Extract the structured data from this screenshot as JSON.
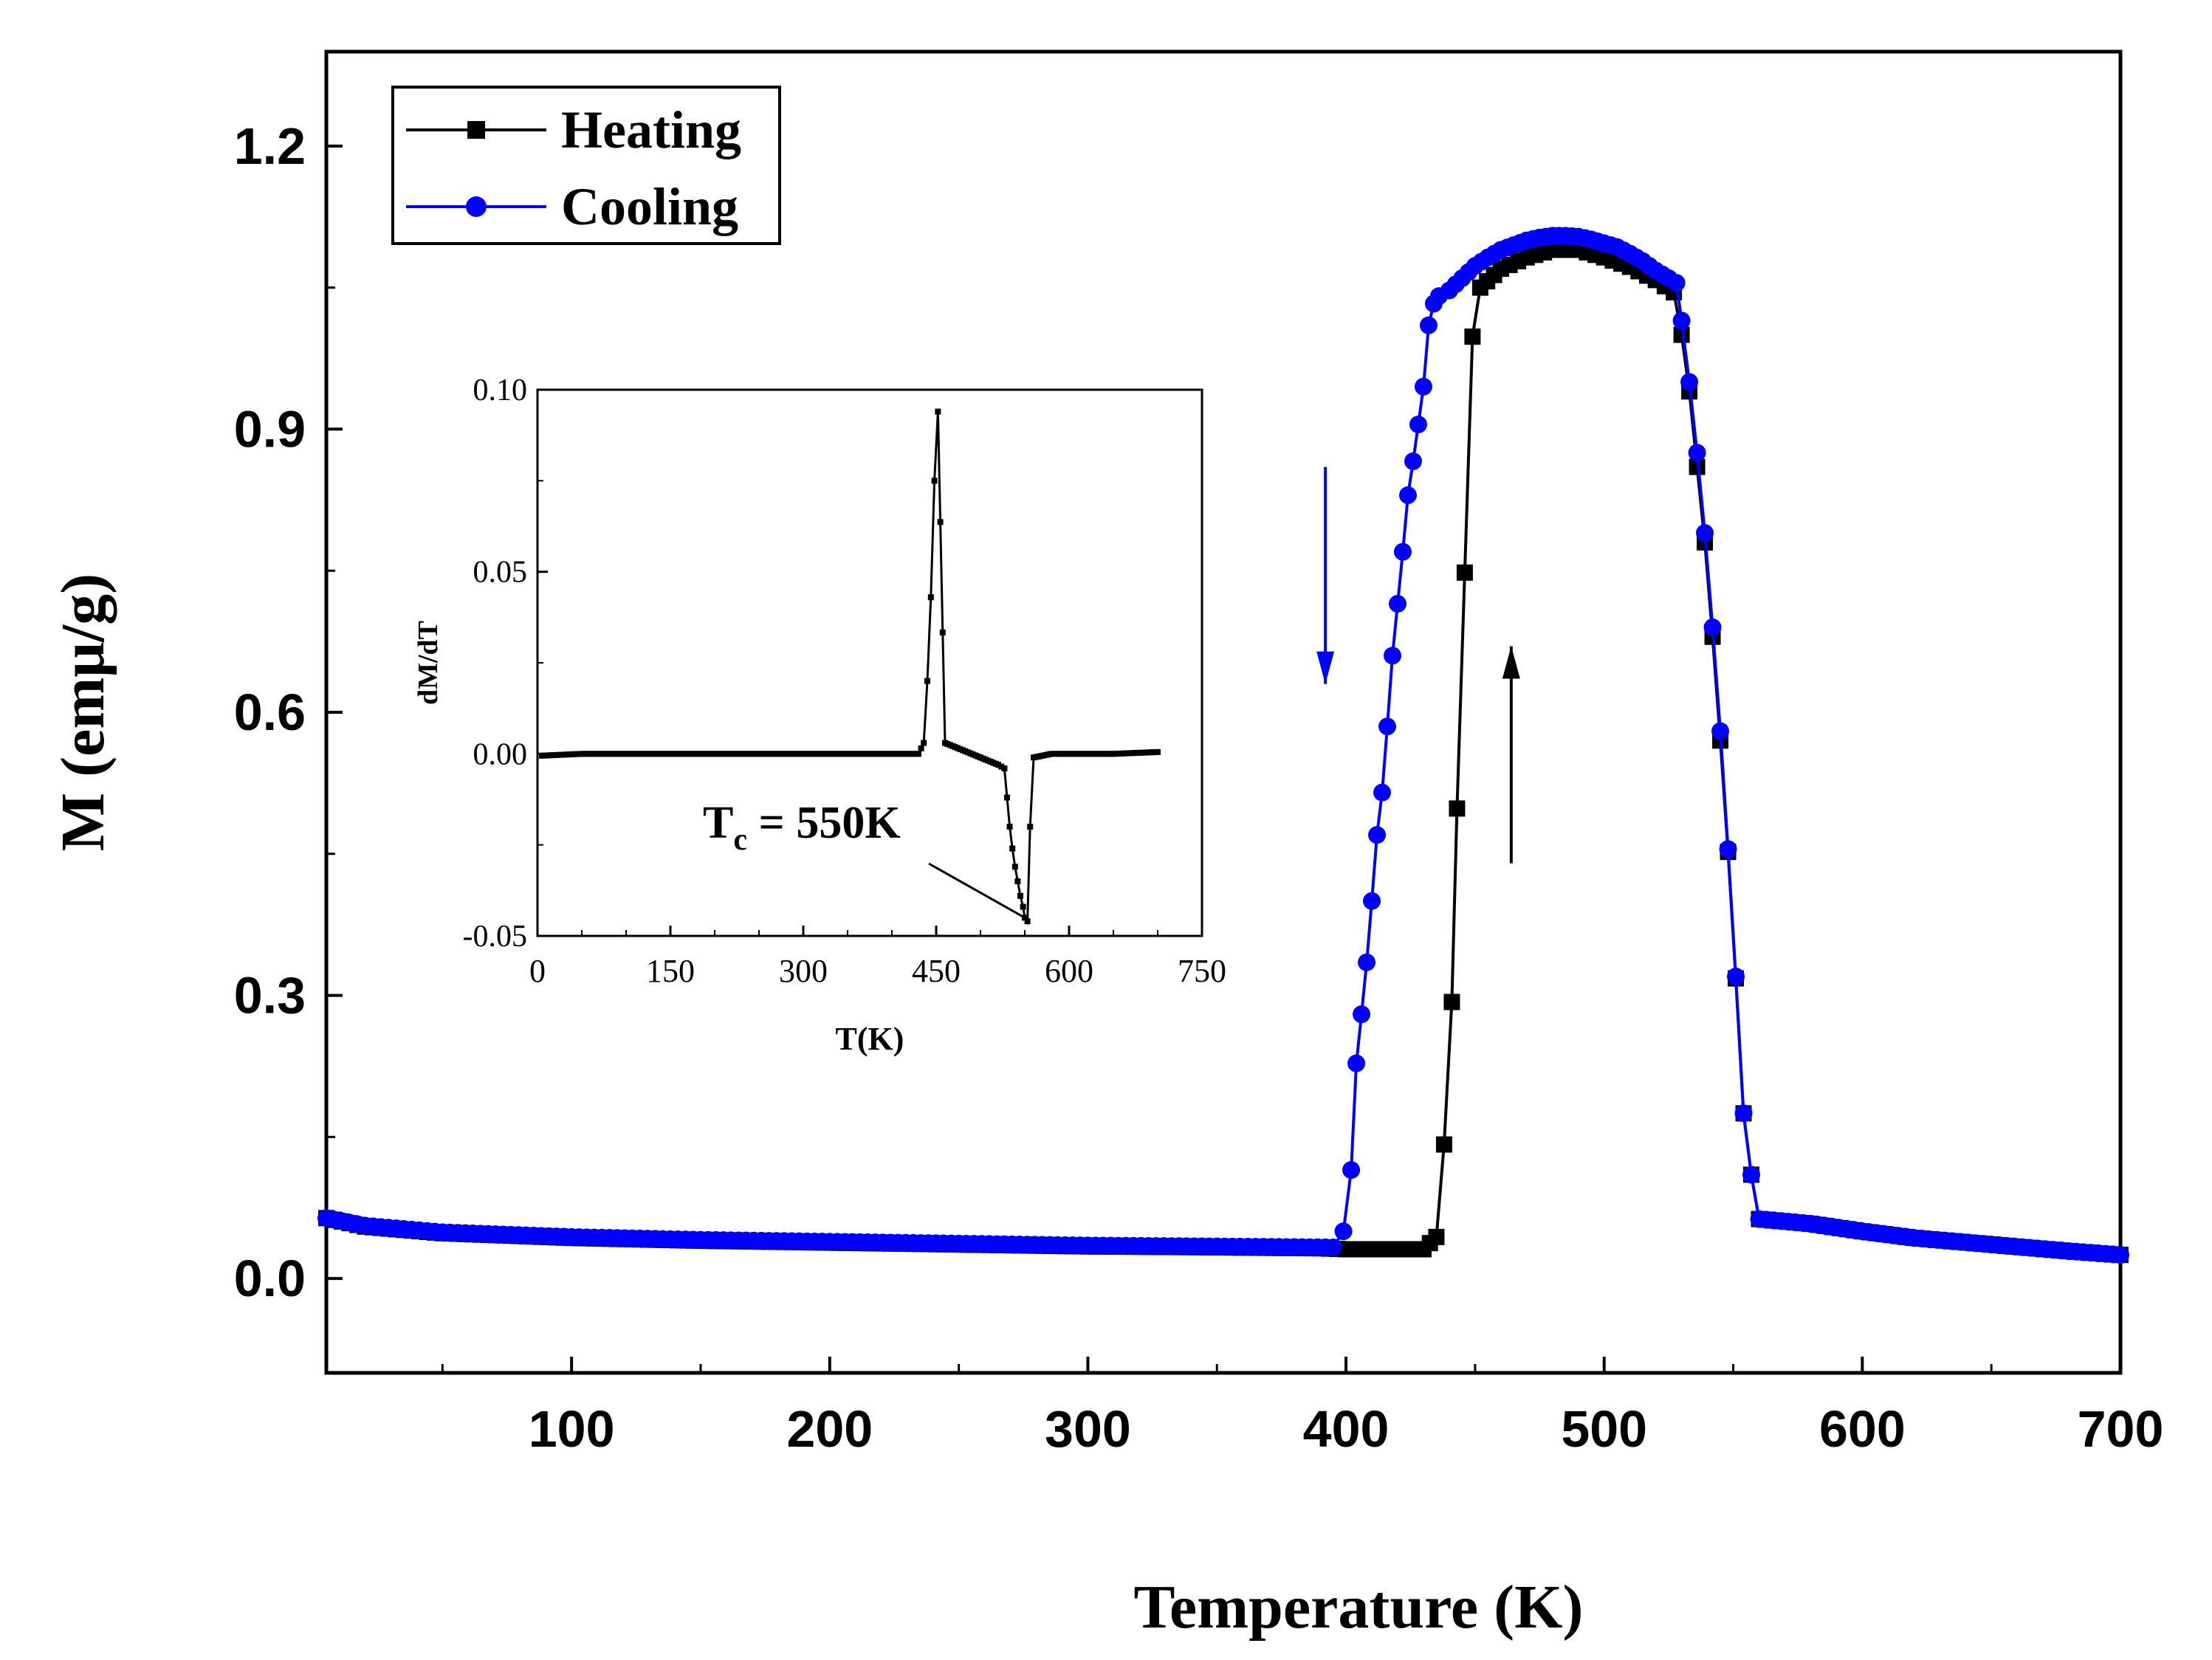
{
  "chart_data": {
    "type": "line",
    "ylabel": "M (emμ/g)",
    "xlabel": "Temperature (K)",
    "xlim": [
      5,
      700
    ],
    "ylim": [
      -0.1,
      1.3
    ],
    "x_ticks": [
      100,
      200,
      300,
      400,
      500,
      600,
      700
    ],
    "x_tick_labels": [
      "100",
      "200",
      "300",
      "400",
      "500",
      "600",
      "700"
    ],
    "y_ticks": [
      0.0,
      0.3,
      0.6,
      0.9,
      1.2
    ],
    "y_tick_labels": [
      "0.0",
      "0.3",
      "0.6",
      "0.9",
      "1.2"
    ],
    "legend_position": "top-left",
    "series": [
      {
        "name": "Heating",
        "color": "#000000",
        "marker": "square",
        "x": [
          5,
          20,
          50,
          100,
          150,
          200,
          250,
          300,
          350,
          390,
          400,
          410,
          420,
          430,
          435,
          438,
          441,
          443,
          446,
          449,
          452,
          460,
          470,
          480,
          490,
          500,
          510,
          520,
          527,
          530,
          533,
          536,
          539,
          542,
          545,
          548,
          551,
          554,
          557,
          560,
          580,
          600,
          620,
          650,
          680,
          700
        ],
        "y": [
          0.064,
          0.055,
          0.048,
          0.043,
          0.04,
          0.038,
          0.036,
          0.034,
          0.033,
          0.032,
          0.031,
          0.031,
          0.031,
          0.031,
          0.044,
          0.142,
          0.293,
          0.498,
          0.748,
          0.998,
          1.05,
          1.07,
          1.082,
          1.09,
          1.09,
          1.082,
          1.072,
          1.058,
          1.045,
          1.0,
          0.94,
          0.86,
          0.78,
          0.68,
          0.57,
          0.452,
          0.318,
          0.175,
          0.11,
          0.063,
          0.058,
          0.05,
          0.043,
          0.036,
          0.029,
          0.025
        ]
      },
      {
        "name": "Cooling",
        "color": "#0000ff",
        "marker": "circle",
        "x": [
          5,
          20,
          50,
          100,
          150,
          200,
          250,
          300,
          350,
          395,
          399,
          402,
          404,
          406,
          408,
          410,
          412,
          414,
          416,
          418,
          420,
          422,
          424,
          426,
          428,
          430,
          432,
          434,
          436,
          440,
          445,
          450,
          455,
          460,
          465,
          470,
          475,
          480,
          485,
          490,
          495,
          500,
          505,
          510,
          515,
          520,
          525,
          528,
          530,
          533,
          536,
          539,
          542,
          545,
          548,
          551,
          554,
          557,
          560,
          580,
          600,
          620,
          650,
          680,
          700
        ],
        "y": [
          0.064,
          0.056,
          0.049,
          0.044,
          0.041,
          0.039,
          0.037,
          0.035,
          0.034,
          0.033,
          0.05,
          0.115,
          0.228,
          0.28,
          0.335,
          0.4,
          0.47,
          0.515,
          0.585,
          0.66,
          0.715,
          0.77,
          0.83,
          0.866,
          0.905,
          0.945,
          1.01,
          1.033,
          1.041,
          1.047,
          1.06,
          1.073,
          1.082,
          1.09,
          1.095,
          1.1,
          1.103,
          1.105,
          1.105,
          1.104,
          1.101,
          1.097,
          1.093,
          1.086,
          1.078,
          1.068,
          1.06,
          1.055,
          1.015,
          0.95,
          0.875,
          0.79,
          0.69,
          0.58,
          0.455,
          0.32,
          0.175,
          0.11,
          0.063,
          0.058,
          0.05,
          0.043,
          0.036,
          0.029,
          0.025
        ]
      }
    ],
    "annotations": {
      "cooling_arrow": {
        "x": 392,
        "y_from": 0.86,
        "y_to": 0.63,
        "color": "#0000ff",
        "direction": "down"
      },
      "heating_arrow": {
        "x": 464,
        "y_from": 0.44,
        "y_to": 0.67,
        "color": "#000000",
        "direction": "up"
      }
    },
    "inset": {
      "type": "line",
      "xlabel": "T(K)",
      "ylabel": "dM/dT",
      "xlim": [
        0,
        750
      ],
      "ylim": [
        -0.05,
        0.1
      ],
      "x_ticks": [
        0,
        150,
        300,
        450,
        600,
        750
      ],
      "x_tick_labels": [
        "0",
        "150",
        "300",
        "450",
        "600",
        "750"
      ],
      "y_ticks": [
        -0.05,
        0.0,
        0.05,
        0.1
      ],
      "y_tick_labels": [
        "-0.05",
        "0.00",
        "0.05",
        "0.10"
      ],
      "annotation": {
        "text_main": "T",
        "text_sub": "c",
        "text_rest": " = 550K",
        "x": 550,
        "y": -0.045
      },
      "series": [
        {
          "name": "dM/dT",
          "color": "#000000",
          "marker": "square",
          "x": [
            5,
            50,
            100,
            150,
            200,
            250,
            300,
            350,
            400,
            430,
            436,
            440,
            444,
            448,
            452,
            460,
            480,
            500,
            520,
            527,
            530,
            533,
            536,
            539,
            542,
            545,
            548,
            550,
            553,
            556,
            560,
            580,
            600,
            650,
            700
          ],
          "y": [
            -0.0005,
            0.0,
            0.0,
            0.0,
            0.0,
            0.0,
            0.0,
            0.0,
            0.0,
            0.0,
            0.003,
            0.02,
            0.043,
            0.075,
            0.094,
            0.003,
            0.001,
            -0.001,
            -0.003,
            -0.004,
            -0.012,
            -0.02,
            -0.026,
            -0.031,
            -0.035,
            -0.039,
            -0.042,
            -0.045,
            -0.046,
            -0.02,
            -0.001,
            0.0,
            0.0,
            0.0,
            0.0005
          ]
        }
      ]
    }
  }
}
